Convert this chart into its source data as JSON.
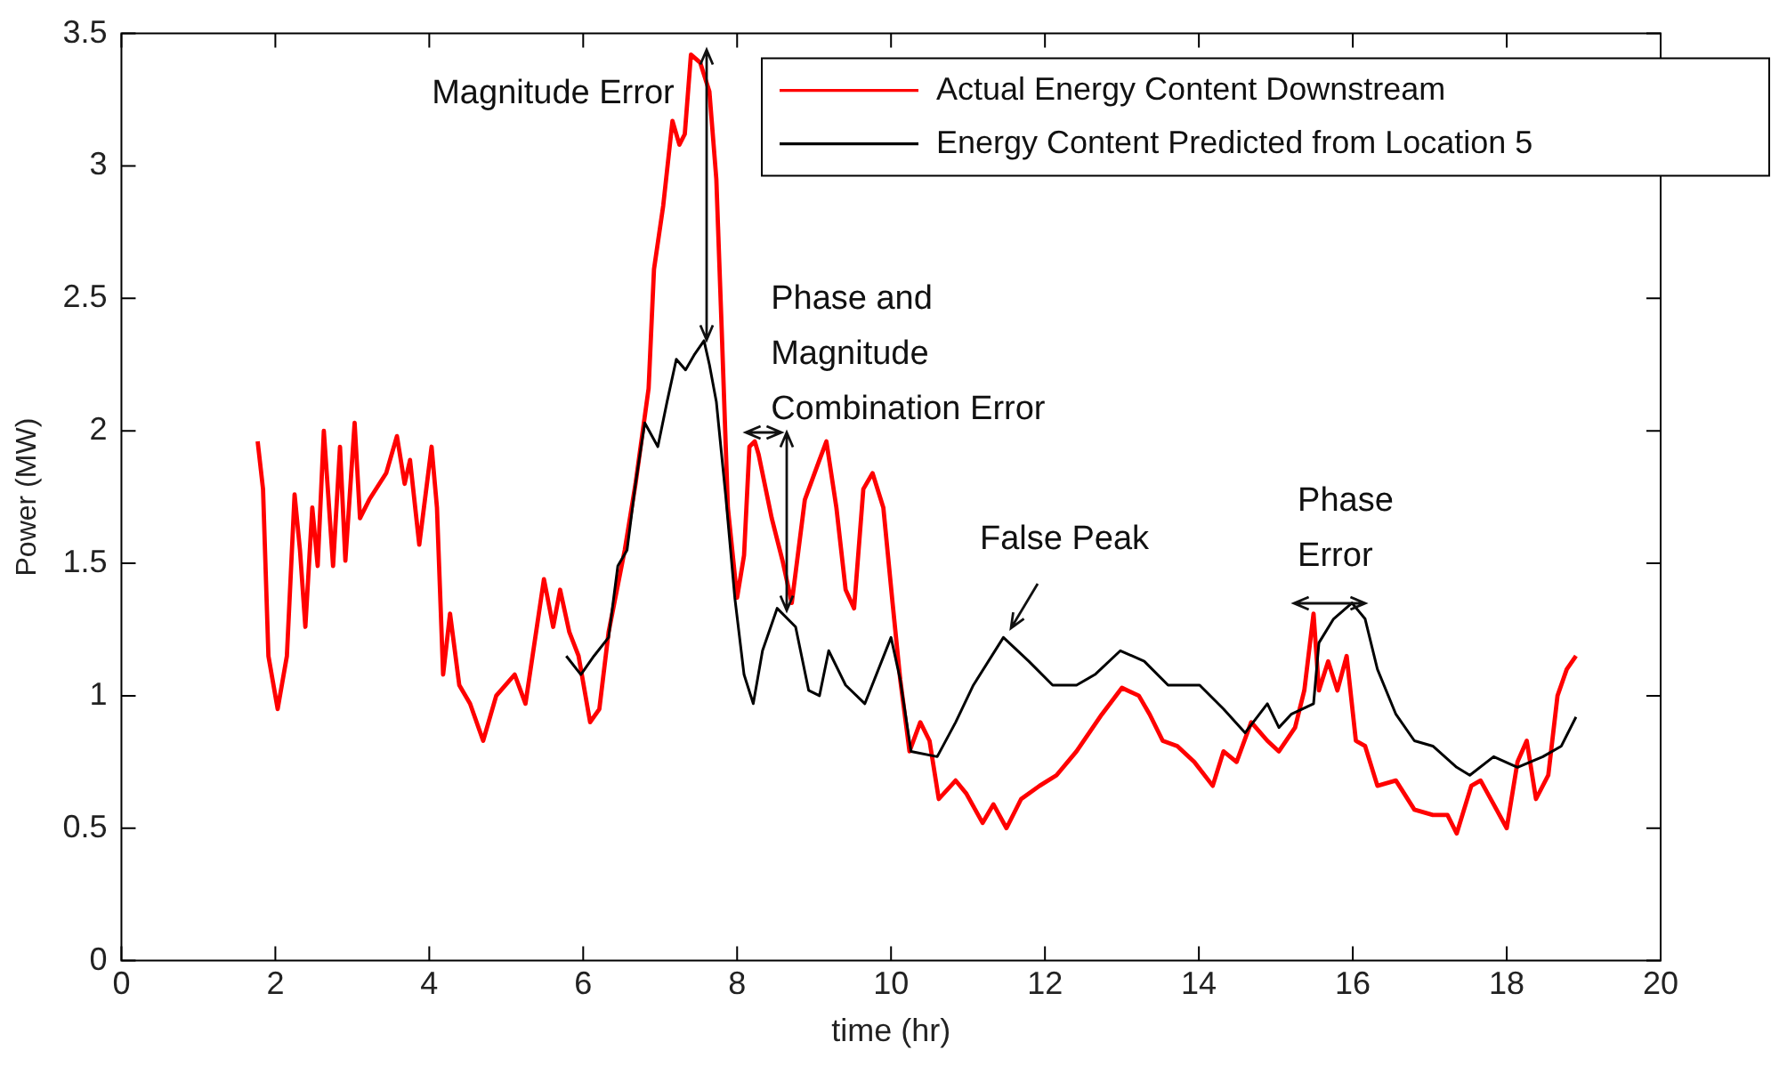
{
  "chart_data": {
    "type": "line",
    "xlabel": "time (hr)",
    "ylabel": "Power (MW)",
    "xlim": [
      0,
      20
    ],
    "xticks": [
      0,
      2,
      4,
      6,
      8,
      10,
      12,
      14,
      16,
      18,
      20
    ],
    "ylim": [
      0,
      3.5
    ],
    "yticks": [
      0,
      0.5,
      1,
      1.5,
      2,
      2.5,
      3,
      3.5
    ],
    "grid": false,
    "legend": "top right",
    "marker": "none",
    "line_style": "solid",
    "series": [
      {
        "name": "Actual Energy Content Downstream",
        "color": "#ff0000",
        "x": [
          1.77,
          1.84,
          1.91,
          2.03,
          2.15,
          2.25,
          2.32,
          2.39,
          2.48,
          2.55,
          2.63,
          2.75,
          2.84,
          2.91,
          3.03,
          3.1,
          3.22,
          3.44,
          3.58,
          3.68,
          3.75,
          3.87,
          4.03,
          4.1,
          4.18,
          4.27,
          4.39,
          4.53,
          4.7,
          4.87,
          5.11,
          5.25,
          5.49,
          5.61,
          5.7,
          5.82,
          5.94,
          6.09,
          6.21,
          6.33,
          6.54,
          6.68,
          6.85,
          6.92,
          7.04,
          7.16,
          7.25,
          7.32,
          7.4,
          7.52,
          7.64,
          7.73,
          7.8,
          7.88,
          8.0,
          8.09,
          8.16,
          8.23,
          8.28,
          8.45,
          8.59,
          8.71,
          8.88,
          9.07,
          9.16,
          9.29,
          9.41,
          9.52,
          9.64,
          9.76,
          9.9,
          10.02,
          10.12,
          10.24,
          10.38,
          10.5,
          10.62,
          10.84,
          10.98,
          11.19,
          11.33,
          11.5,
          11.69,
          11.93,
          12.15,
          12.41,
          12.74,
          13.0,
          13.22,
          13.36,
          13.53,
          13.72,
          13.94,
          14.18,
          14.32,
          14.49,
          14.68,
          14.89,
          15.04,
          15.25,
          15.37,
          15.49,
          15.56,
          15.68,
          15.8,
          15.92,
          16.04,
          16.16,
          16.32,
          16.56,
          16.8,
          17.04,
          17.23,
          17.35,
          17.54,
          17.66,
          17.83,
          18.0,
          18.14,
          18.26,
          18.38,
          18.54,
          18.66,
          18.78,
          18.9
        ],
        "values": [
          1.96,
          1.78,
          1.15,
          0.95,
          1.15,
          1.76,
          1.55,
          1.26,
          1.71,
          1.49,
          2.0,
          1.49,
          1.94,
          1.51,
          2.03,
          1.67,
          1.74,
          1.84,
          1.98,
          1.8,
          1.89,
          1.57,
          1.94,
          1.71,
          1.08,
          1.31,
          1.04,
          0.97,
          0.83,
          1.0,
          1.08,
          0.97,
          1.44,
          1.26,
          1.4,
          1.24,
          1.15,
          0.9,
          0.95,
          1.24,
          1.55,
          1.8,
          2.16,
          2.61,
          2.85,
          3.17,
          3.08,
          3.12,
          3.42,
          3.39,
          3.28,
          2.95,
          2.38,
          1.71,
          1.37,
          1.53,
          1.94,
          1.96,
          1.91,
          1.67,
          1.51,
          1.35,
          1.74,
          1.89,
          1.96,
          1.71,
          1.4,
          1.33,
          1.78,
          1.84,
          1.71,
          1.35,
          1.06,
          0.79,
          0.9,
          0.83,
          0.61,
          0.68,
          0.63,
          0.52,
          0.59,
          0.5,
          0.61,
          0.66,
          0.7,
          0.79,
          0.93,
          1.03,
          1.0,
          0.93,
          0.83,
          0.81,
          0.75,
          0.66,
          0.79,
          0.75,
          0.9,
          0.83,
          0.79,
          0.88,
          1.02,
          1.31,
          1.02,
          1.13,
          1.02,
          1.15,
          0.83,
          0.81,
          0.66,
          0.68,
          0.57,
          0.55,
          0.55,
          0.48,
          0.66,
          0.68,
          0.59,
          0.5,
          0.75,
          0.83,
          0.61,
          0.7,
          1.0,
          1.1,
          1.15
        ]
      },
      {
        "name": "Energy Content Predicted from Location 5",
        "color": "#000000",
        "x": [
          5.78,
          5.97,
          6.14,
          6.33,
          6.45,
          6.57,
          6.68,
          6.8,
          6.97,
          7.09,
          7.21,
          7.33,
          7.45,
          7.57,
          7.64,
          7.73,
          7.85,
          7.97,
          8.09,
          8.21,
          8.33,
          8.52,
          8.76,
          8.93,
          9.07,
          9.19,
          9.41,
          9.66,
          10.0,
          10.12,
          10.26,
          10.6,
          10.84,
          11.07,
          11.46,
          11.79,
          12.1,
          12.41,
          12.65,
          12.98,
          13.29,
          13.6,
          14.01,
          14.32,
          14.6,
          14.89,
          15.04,
          15.2,
          15.49,
          15.56,
          15.75,
          15.99,
          16.16,
          16.32,
          16.56,
          16.8,
          17.04,
          17.35,
          17.52,
          17.83,
          18.14,
          18.47,
          18.71,
          18.9
        ],
        "values": [
          1.15,
          1.08,
          1.15,
          1.22,
          1.49,
          1.55,
          1.8,
          2.03,
          1.94,
          2.11,
          2.27,
          2.23,
          2.29,
          2.34,
          2.25,
          2.11,
          1.76,
          1.37,
          1.08,
          0.97,
          1.17,
          1.33,
          1.26,
          1.02,
          1.0,
          1.17,
          1.04,
          0.97,
          1.22,
          1.06,
          0.79,
          0.77,
          0.9,
          1.04,
          1.22,
          1.13,
          1.04,
          1.04,
          1.08,
          1.17,
          1.13,
          1.04,
          1.04,
          0.95,
          0.86,
          0.97,
          0.88,
          0.93,
          0.97,
          1.2,
          1.29,
          1.35,
          1.29,
          1.1,
          0.93,
          0.83,
          0.81,
          0.73,
          0.7,
          0.77,
          0.73,
          0.77,
          0.81,
          0.92
        ]
      }
    ],
    "annotations": [
      {
        "text": "Magnitude Error",
        "x": 7.6,
        "y": 3.42
      },
      {
        "text": "Phase and\nMagnitude\nCombination Error",
        "x": 8.6,
        "y": 1.3
      },
      {
        "text": "False Peak",
        "x": 11.5,
        "y": 1.22
      },
      {
        "text": "Phase\nError",
        "x": 16.0,
        "y": 1.35
      }
    ]
  }
}
